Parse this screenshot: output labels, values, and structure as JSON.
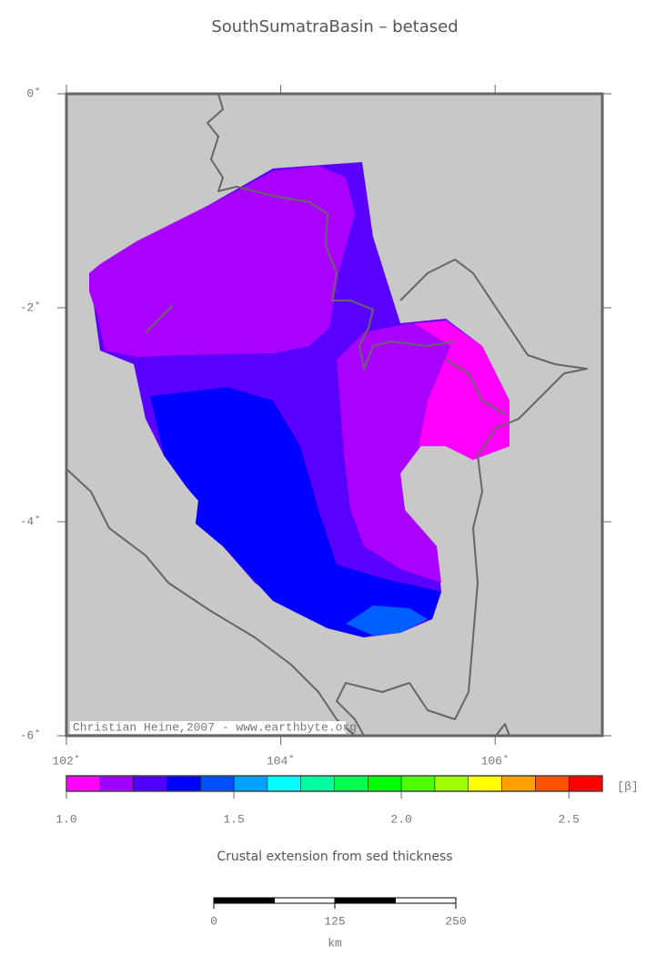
{
  "title": "SouthSumatraBasin – betased",
  "map": {
    "lon_range": [
      102,
      107
    ],
    "lat_range": [
      0,
      -6
    ],
    "lat_ticks": [
      {
        "value": 0,
        "label": "0˚"
      },
      {
        "value": -2,
        "label": "-2˚"
      },
      {
        "value": -4,
        "label": "-4˚"
      },
      {
        "value": -6,
        "label": "-6˚"
      }
    ],
    "lon_ticks": [
      {
        "value": 102,
        "label": "102˚"
      },
      {
        "value": 104,
        "label": "104˚"
      },
      {
        "value": 106,
        "label": "106˚"
      }
    ],
    "credit": "Christian Heine,2007 - www.earthbyte.org"
  },
  "colorbar": {
    "range": [
      1.0,
      2.6
    ],
    "colors": [
      "#ff00ff",
      "#a000ff",
      "#5000ff",
      "#0000ff",
      "#0050ff",
      "#00a0ff",
      "#00ffff",
      "#00ffa0",
      "#00ff50",
      "#00ff00",
      "#50ff00",
      "#a0ff00",
      "#ffff00",
      "#ffa000",
      "#ff5000",
      "#ff0000"
    ],
    "ticks": [
      {
        "value": 1,
        "label": "1.0"
      },
      1.5,
      {
        "value": 2,
        "label": "2.0"
      },
      2.5
    ],
    "unit": "[β]",
    "label": "Crustal extension from sed thickness"
  },
  "scale_bar": {
    "range": [
      0,
      250
    ],
    "ticks": [
      0,
      125,
      250
    ],
    "unit": "km"
  }
}
